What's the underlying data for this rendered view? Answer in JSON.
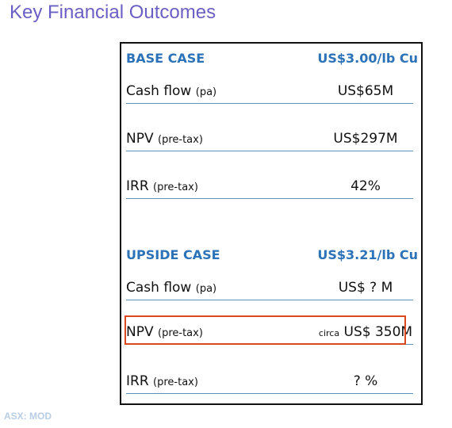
{
  "title": "Key Financial Outcomes",
  "base": {
    "heading": "BASE CASE",
    "price": "US$3.00/lb Cu",
    "rows": [
      {
        "label": "Cash flow",
        "sub": "(pa)",
        "value": "US$65M"
      },
      {
        "label": "NPV",
        "sub": "(pre-tax)",
        "value": "US$297M"
      },
      {
        "label": "IRR",
        "sub": "(pre-tax)",
        "value": "42%"
      }
    ]
  },
  "upside": {
    "heading": "UPSIDE CASE",
    "price": "US$3.21/lb Cu",
    "rows": [
      {
        "label": "Cash flow",
        "sub": "(pa)",
        "value": "US$ ?  M"
      },
      {
        "label": "NPV",
        "sub": "(pre-tax)",
        "value_prefix": "circa",
        "value": "US$ 350M"
      },
      {
        "label": "IRR",
        "sub": "(pre-tax)",
        "value": "? %"
      }
    ]
  },
  "footer": "ASX: MOD",
  "colors": {
    "title": "#6a5fc4",
    "heading": "#2b72b8",
    "highlight": "#d9481f",
    "rule": "#5f90b8"
  }
}
